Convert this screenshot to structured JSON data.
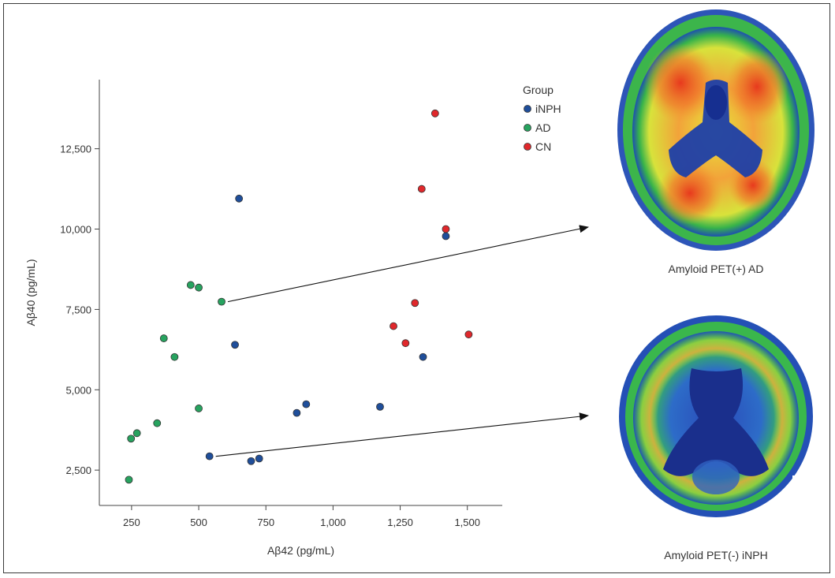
{
  "chart_data": {
    "type": "scatter",
    "xlabel": "Aβ42 (pg/mL)",
    "ylabel": "Aβ40 (pg/mL)",
    "xlim": [
      130,
      1630
    ],
    "ylim": [
      1400,
      14650
    ],
    "xticks": [
      250,
      500,
      750,
      1000,
      1250,
      1500
    ],
    "xtick_labels": [
      "250",
      "500",
      "750",
      "1,000",
      "1,250",
      "1,500"
    ],
    "yticks": [
      2500,
      5000,
      7500,
      10000,
      12500
    ],
    "ytick_labels": [
      "2,500",
      "5,000",
      "7,500",
      "10,000",
      "12,500"
    ],
    "legend": {
      "title": "Group",
      "position": "top-right"
    },
    "series": [
      {
        "name": "iNPH",
        "color": "#1f4e9a",
        "points": [
          {
            "x": 650,
            "y": 10950
          },
          {
            "x": 1420,
            "y": 9780
          },
          {
            "x": 635,
            "y": 6400
          },
          {
            "x": 1335,
            "y": 6020
          },
          {
            "x": 900,
            "y": 4550
          },
          {
            "x": 865,
            "y": 4280
          },
          {
            "x": 1175,
            "y": 4470
          },
          {
            "x": 540,
            "y": 2930
          },
          {
            "x": 725,
            "y": 2860
          },
          {
            "x": 695,
            "y": 2780
          }
        ]
      },
      {
        "name": "AD",
        "color": "#27a35f",
        "points": [
          {
            "x": 470,
            "y": 8260
          },
          {
            "x": 500,
            "y": 8180
          },
          {
            "x": 585,
            "y": 7740
          },
          {
            "x": 370,
            "y": 6600
          },
          {
            "x": 410,
            "y": 6020
          },
          {
            "x": 500,
            "y": 4420
          },
          {
            "x": 345,
            "y": 3960
          },
          {
            "x": 270,
            "y": 3650
          },
          {
            "x": 248,
            "y": 3480
          },
          {
            "x": 240,
            "y": 2200
          }
        ]
      },
      {
        "name": "CN",
        "color": "#e0282c",
        "points": [
          {
            "x": 1380,
            "y": 13600
          },
          {
            "x": 1330,
            "y": 11250
          },
          {
            "x": 1420,
            "y": 10000
          },
          {
            "x": 1305,
            "y": 7700
          },
          {
            "x": 1225,
            "y": 6980
          },
          {
            "x": 1505,
            "y": 6720
          },
          {
            "x": 1270,
            "y": 6450
          }
        ]
      }
    ],
    "arrows": [
      {
        "from": {
          "x": 585,
          "y": 7740
        },
        "to_image": "top"
      },
      {
        "from": {
          "x": 540,
          "y": 2930
        },
        "to_image": "bottom"
      }
    ]
  },
  "images": {
    "top_caption": "Amyloid PET(+) AD",
    "bottom_caption": "Amyloid PET(-) iNPH"
  }
}
